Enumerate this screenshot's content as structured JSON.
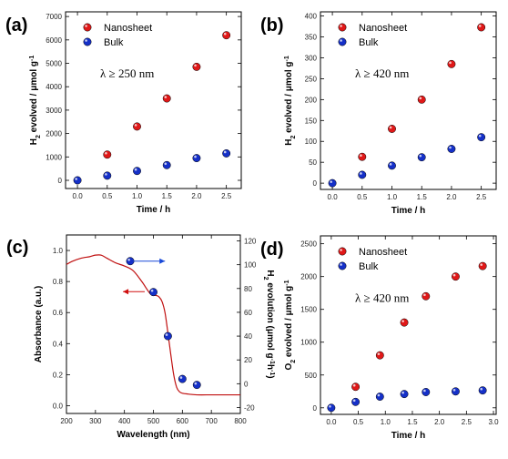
{
  "colors": {
    "nanosheet": "#e01818",
    "bulk": "#1530c8",
    "absorbance": "#c01010",
    "arrow_red": "#d01010",
    "arrow_blue": "#1848d8"
  },
  "chart_data": [
    {
      "id": "a",
      "panel_label": "(a)",
      "type": "scatter",
      "xlabel": "Time / h",
      "ylabel": "H2 evolved / μmol g-1",
      "ylabel_parts": [
        "H",
        "2",
        " evolved / ",
        "μ",
        "mol g",
        "-1"
      ],
      "xlim": [
        -0.2,
        2.75
      ],
      "ylim": [
        -350,
        7200
      ],
      "xticks": [
        0.0,
        0.5,
        1.0,
        1.5,
        2.0,
        2.5
      ],
      "xtick_labels": [
        "0.0",
        "0.5",
        "1.0",
        "1.5",
        "2.0",
        "2.5"
      ],
      "yticks": [
        0,
        1000,
        2000,
        3000,
        4000,
        5000,
        6000,
        7000
      ],
      "ytick_labels": [
        "0",
        "1000",
        "2000",
        "3000",
        "4000",
        "5000",
        "6000",
        "7000"
      ],
      "annotation": "λ ≥ 250 nm",
      "series": [
        {
          "name": "Nanosheet",
          "color_key": "nanosheet",
          "x": [
            0.5,
            1.0,
            1.5,
            2.0,
            2.5
          ],
          "y": [
            1100,
            2300,
            3500,
            4850,
            6200
          ]
        },
        {
          "name": "Bulk",
          "color_key": "bulk",
          "x": [
            0.0,
            0.5,
            1.0,
            1.5,
            2.0,
            2.5
          ],
          "y": [
            0,
            200,
            400,
            650,
            950,
            1150
          ]
        }
      ]
    },
    {
      "id": "b",
      "panel_label": "(b)",
      "type": "scatter",
      "xlabel": "Time / h",
      "ylabel": "H2 evolved / μmol g-1",
      "ylabel_parts": [
        "H",
        "2",
        " evolved / ",
        "μ",
        "mol g",
        "-1"
      ],
      "xlim": [
        -0.2,
        2.75
      ],
      "ylim": [
        -15,
        410
      ],
      "xticks": [
        0.0,
        0.5,
        1.0,
        1.5,
        2.0,
        2.5
      ],
      "xtick_labels": [
        "0.0",
        "0.5",
        "1.0",
        "1.5",
        "2.0",
        "2.5"
      ],
      "yticks": [
        0,
        50,
        100,
        150,
        200,
        250,
        300,
        350,
        400
      ],
      "ytick_labels": [
        "0",
        "50",
        "100",
        "150",
        "200",
        "250",
        "300",
        "350",
        "400"
      ],
      "annotation": "λ ≥ 420 nm",
      "series": [
        {
          "name": "Nanosheet",
          "color_key": "nanosheet",
          "x": [
            0.5,
            1.0,
            1.5,
            2.0,
            2.5
          ],
          "y": [
            63,
            130,
            200,
            285,
            373
          ]
        },
        {
          "name": "Bulk",
          "color_key": "bulk",
          "x": [
            0.0,
            0.5,
            1.0,
            1.5,
            2.0,
            2.5
          ],
          "y": [
            0,
            20,
            42,
            62,
            82,
            110
          ]
        }
      ]
    },
    {
      "id": "c",
      "panel_label": "(c)",
      "type": "line+scatter",
      "xlabel": "Wavelength (nm)",
      "ylabel": "Absorbance (a.u.)",
      "ylabel_right": "H2 evolution (μmol g-1 h-1)",
      "ylabel_right_parts": [
        "H",
        "2",
        " evolution (",
        "μ",
        "mol g",
        "-1",
        "h",
        "-1",
        ")"
      ],
      "xlim": [
        200,
        800
      ],
      "ylim": [
        -0.05,
        1.1
      ],
      "ylim_right": [
        -25,
        125
      ],
      "xticks": [
        200,
        300,
        400,
        500,
        600,
        700,
        800
      ],
      "xtick_labels": [
        "200",
        "300",
        "400",
        "500",
        "600",
        "700",
        "800"
      ],
      "yticks": [
        0.0,
        0.2,
        0.4,
        0.6,
        0.8,
        1.0
      ],
      "ytick_labels": [
        "0.0",
        "0.2",
        "0.4",
        "0.6",
        "0.8",
        "1.0"
      ],
      "yticks_right": [
        -20,
        0,
        20,
        40,
        60,
        80,
        100,
        120
      ],
      "ytick_labels_right": [
        "-20",
        "0",
        "20",
        "40",
        "60",
        "80",
        "100",
        "120"
      ],
      "absorbance": {
        "x": [
          200,
          220,
          250,
          280,
          300,
          320,
          340,
          370,
          400,
          430,
          460,
          490,
          510,
          520,
          530,
          540,
          550,
          560,
          570,
          580,
          590,
          600,
          620,
          650,
          700,
          750,
          800
        ],
        "y": [
          0.91,
          0.93,
          0.95,
          0.96,
          0.97,
          0.97,
          0.95,
          0.92,
          0.9,
          0.87,
          0.8,
          0.72,
          0.71,
          0.7,
          0.67,
          0.6,
          0.47,
          0.33,
          0.2,
          0.12,
          0.09,
          0.08,
          0.075,
          0.07,
          0.07,
          0.07,
          0.07
        ]
      },
      "h2_points": {
        "x": [
          420,
          500,
          550,
          600,
          650
        ],
        "y": [
          103,
          77,
          40,
          4,
          -1
        ]
      }
    },
    {
      "id": "d",
      "panel_label": "(d)",
      "type": "scatter",
      "xlabel": "Time / h",
      "ylabel": "O2 evolved / μmol g-1",
      "ylabel_parts": [
        "O",
        "2",
        " evolved / ",
        "μ",
        "mol g",
        "-1"
      ],
      "xlim": [
        -0.2,
        3.05
      ],
      "ylim": [
        -100,
        2620
      ],
      "xticks": [
        0.0,
        0.5,
        1.0,
        1.5,
        2.0,
        2.5,
        3.0
      ],
      "xtick_labels": [
        "0.0",
        "0.5",
        "1.0",
        "1.5",
        "2.0",
        "2.5",
        "3.0"
      ],
      "yticks": [
        0,
        500,
        1000,
        1500,
        2000,
        2500
      ],
      "ytick_labels": [
        "0",
        "500",
        "1000",
        "1500",
        "2000",
        "2500"
      ],
      "annotation": "λ ≥ 420 nm",
      "series": [
        {
          "name": "Nanosheet",
          "color_key": "nanosheet",
          "x": [
            0.45,
            0.9,
            1.35,
            1.75,
            2.3,
            2.8
          ],
          "y": [
            320,
            800,
            1300,
            1700,
            2000,
            2160
          ]
        },
        {
          "name": "Bulk",
          "color_key": "bulk",
          "x": [
            0.0,
            0.45,
            0.9,
            1.35,
            1.75,
            2.3,
            2.8
          ],
          "y": [
            0,
            90,
            170,
            210,
            240,
            250,
            265
          ]
        }
      ]
    }
  ]
}
